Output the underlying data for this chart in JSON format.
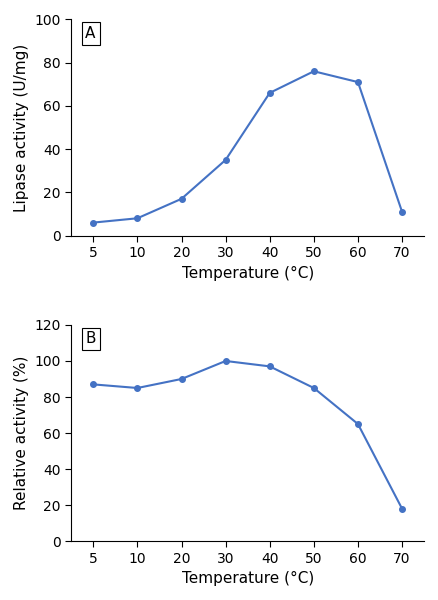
{
  "panel_A": {
    "label": "A",
    "x_labels": [
      5,
      10,
      20,
      30,
      40,
      50,
      60,
      70
    ],
    "y": [
      6,
      8,
      17,
      35,
      66,
      76,
      71,
      11
    ],
    "xlabel": "Temperature (°C)",
    "ylabel": "Lipase activity (U/mg)",
    "ylim": [
      0,
      100
    ],
    "yticks": [
      0,
      20,
      40,
      60,
      80,
      100
    ]
  },
  "panel_B": {
    "label": "B",
    "x_labels": [
      5,
      10,
      20,
      30,
      40,
      50,
      60,
      70
    ],
    "y": [
      87,
      85,
      90,
      100,
      97,
      85,
      65,
      18
    ],
    "xlabel": "Temperature (°C)",
    "ylabel": "Relative activity (%)",
    "ylim": [
      0,
      120
    ],
    "yticks": [
      0,
      20,
      40,
      60,
      80,
      100,
      120
    ]
  },
  "line_color": "#4472C4",
  "marker": "o",
  "marker_size": 4,
  "line_width": 1.5,
  "label_fontsize": 11,
  "tick_fontsize": 10,
  "panel_label_fontsize": 11,
  "background_color": "#ffffff"
}
